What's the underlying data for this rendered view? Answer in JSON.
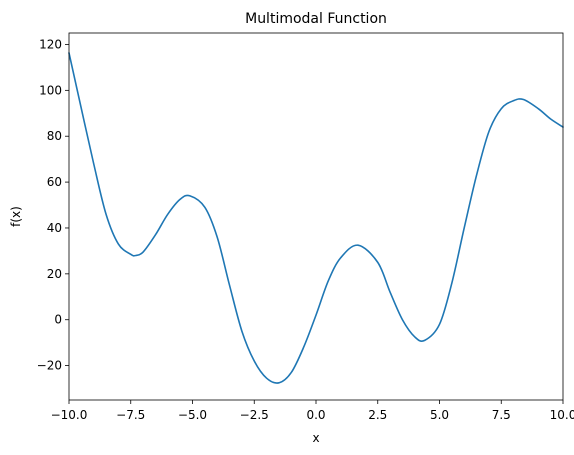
{
  "chart_data": {
    "type": "line",
    "title": "Multimodal Function",
    "xlabel": "x",
    "ylabel": "f(x)",
    "xlim": [
      -10.0,
      10.0
    ],
    "ylim": [
      -35,
      125
    ],
    "xticks": [
      -10.0,
      -7.5,
      -5.0,
      -2.5,
      0.0,
      2.5,
      5.0,
      7.5,
      10.0
    ],
    "xtick_labels": [
      "−10.0",
      "−7.5",
      "−5.0",
      "−2.5",
      "0.0",
      "2.5",
      "5.0",
      "7.5",
      "10.0"
    ],
    "yticks": [
      -20,
      0,
      20,
      40,
      60,
      80,
      100,
      120
    ],
    "ytick_labels": [
      "−20",
      "0",
      "20",
      "40",
      "60",
      "80",
      "100",
      "120"
    ],
    "grid": false,
    "legend": "none",
    "series": [
      {
        "color": "#1f77b4",
        "x": [
          -10.0,
          -9.5,
          -9.0,
          -8.5,
          -8.0,
          -7.5,
          -7.3,
          -7.0,
          -6.5,
          -6.0,
          -5.5,
          -5.1,
          -4.5,
          -4.0,
          -3.5,
          -3.0,
          -2.5,
          -2.0,
          -1.5,
          -1.0,
          -0.5,
          0.0,
          0.5,
          1.0,
          1.7,
          2.5,
          3.0,
          3.5,
          4.0,
          4.4,
          5.0,
          5.5,
          6.0,
          6.5,
          7.0,
          7.5,
          8.0,
          8.4,
          9.0,
          9.5,
          10.0
        ],
        "y": [
          116.3,
          92.0,
          68.0,
          46.0,
          33.0,
          28.5,
          28.0,
          29.5,
          37.0,
          46.0,
          52.5,
          54.0,
          49.0,
          36.0,
          15.0,
          -5.0,
          -18.0,
          -25.5,
          -27.5,
          -23.0,
          -12.0,
          2.0,
          17.0,
          27.0,
          32.5,
          25.0,
          12.0,
          0.0,
          -7.5,
          -9.0,
          -2.0,
          16.0,
          40.0,
          63.0,
          82.0,
          92.0,
          95.5,
          96.0,
          92.0,
          87.5,
          84.0
        ]
      }
    ]
  }
}
